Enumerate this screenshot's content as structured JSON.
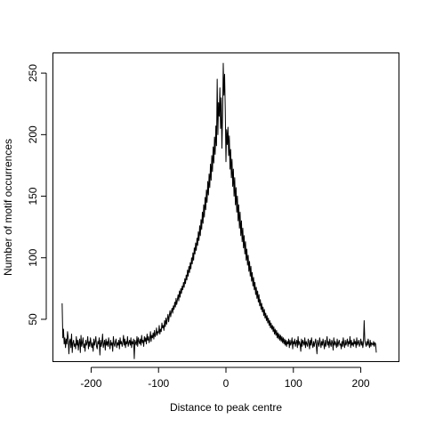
{
  "chart_data": {
    "type": "line",
    "title": "",
    "xlabel": "Distance to peak centre",
    "ylabel": "Number of motif occurrences",
    "xlim": [
      -256,
      256
    ],
    "ylim": [
      16,
      266
    ],
    "x_ticks": [
      -200,
      -100,
      0,
      100,
      200
    ],
    "y_ticks": [
      50,
      100,
      150,
      200,
      250
    ],
    "x_tick_labels": [
      "-200",
      "-100",
      "0",
      "100",
      "200"
    ],
    "y_tick_labels": [
      "50",
      "100",
      "150",
      "200",
      "250"
    ],
    "grid": false,
    "legend": "none",
    "line_color": "#000000",
    "series": [
      {
        "x_range": [
          -243,
          243
        ],
        "step": 1,
        "values": [
          63,
          35,
          42,
          30,
          35,
          27,
          34,
          30,
          40,
          35,
          22,
          32,
          34,
          27,
          38,
          23,
          31,
          33,
          28,
          30,
          26,
          36,
          29,
          33,
          25,
          31,
          34,
          23,
          37,
          28,
          31,
          35,
          27,
          30,
          24,
          33,
          29,
          31,
          36,
          26,
          32,
          28,
          35,
          30,
          27,
          31,
          24,
          34,
          29,
          32,
          36,
          28,
          26,
          32,
          30,
          35,
          21,
          33,
          28,
          31,
          38,
          27,
          30,
          33,
          25,
          34,
          29,
          32,
          28,
          35,
          30,
          26,
          33,
          29,
          31,
          24,
          36,
          30,
          28,
          32,
          34,
          27,
          31,
          29,
          33,
          26,
          35,
          30,
          32,
          28,
          31,
          37,
          29,
          34,
          27,
          32,
          30,
          36,
          28,
          31,
          33,
          29,
          35,
          27,
          32,
          30,
          34,
          18,
          33,
          31,
          29,
          36,
          28,
          35,
          32,
          30,
          34,
          29,
          37,
          31,
          33,
          28,
          36,
          32,
          35,
          30,
          38,
          33,
          36,
          31,
          34,
          40,
          32,
          37,
          35,
          39,
          34,
          41,
          36,
          38,
          43,
          37,
          40,
          39,
          45,
          38,
          42,
          40,
          47,
          43,
          45,
          41,
          49,
          44,
          51,
          46,
          50,
          54,
          48,
          53,
          57,
          52,
          56,
          59,
          55,
          61,
          58,
          64,
          60,
          67,
          62,
          66,
          70,
          65,
          73,
          68,
          75,
          71,
          77,
          74,
          80,
          76,
          83,
          79,
          86,
          82,
          90,
          85,
          93,
          88,
          96,
          91,
          100,
          95,
          104,
          98,
          108,
          103,
          112,
          106,
          116,
          110,
          121,
          114,
          126,
          118,
          131,
          123,
          137,
          128,
          143,
          133,
          149,
          139,
          155,
          145,
          162,
          151,
          168,
          157,
          176,
          163,
          183,
          170,
          190,
          177,
          198,
          184,
          207,
          191,
          245,
          200,
          226,
          215,
          238,
          205,
          230,
          189,
          215,
          258,
          232,
          249,
          220,
          178,
          204,
          192,
          206,
          183,
          199,
          172,
          188,
          165,
          180,
          158,
          172,
          150,
          165,
          143,
          157,
          137,
          150,
          130,
          143,
          124,
          137,
          118,
          130,
          113,
          124,
          108,
          118,
          103,
          113,
          98,
          107,
          94,
          102,
          89,
          97,
          85,
          93,
          81,
          88,
          77,
          84,
          74,
          80,
          70,
          76,
          67,
          73,
          64,
          70,
          61,
          66,
          58,
          63,
          56,
          60,
          53,
          58,
          51,
          55,
          49,
          53,
          47,
          51,
          45,
          49,
          43,
          47,
          42,
          45,
          40,
          44,
          38,
          42,
          37,
          41,
          35,
          39,
          34,
          38,
          33,
          37,
          32,
          36,
          31,
          35,
          30,
          34,
          29,
          33,
          28,
          32,
          30,
          34,
          27,
          33,
          29,
          31,
          35,
          26,
          32,
          30,
          34,
          28,
          31,
          33,
          27,
          36,
          29,
          32,
          30,
          24,
          34,
          28,
          33,
          31,
          29,
          35,
          27,
          32,
          30,
          28,
          34,
          31,
          26,
          33,
          29,
          35,
          30,
          27,
          32,
          28,
          31,
          34,
          29,
          22,
          33,
          30,
          28,
          35,
          31,
          27,
          32,
          29,
          34,
          30,
          26,
          33,
          28,
          31,
          36,
          29,
          32,
          27,
          34,
          30,
          28,
          33,
          31,
          25,
          35,
          29,
          32,
          30,
          27,
          34,
          28,
          31,
          33,
          29,
          30,
          26,
          32,
          28,
          35,
          30,
          27,
          33,
          29,
          31,
          34,
          28,
          32,
          30,
          36,
          27,
          33,
          29,
          31,
          28,
          34,
          30,
          32,
          27,
          35,
          29,
          31,
          33,
          28,
          30,
          34,
          29,
          32,
          27,
          31,
          49,
          33,
          30,
          28,
          32,
          29,
          34,
          30,
          27,
          33,
          28,
          31,
          30,
          29,
          32,
          28,
          31,
          30,
          23
        ]
      }
    ]
  }
}
